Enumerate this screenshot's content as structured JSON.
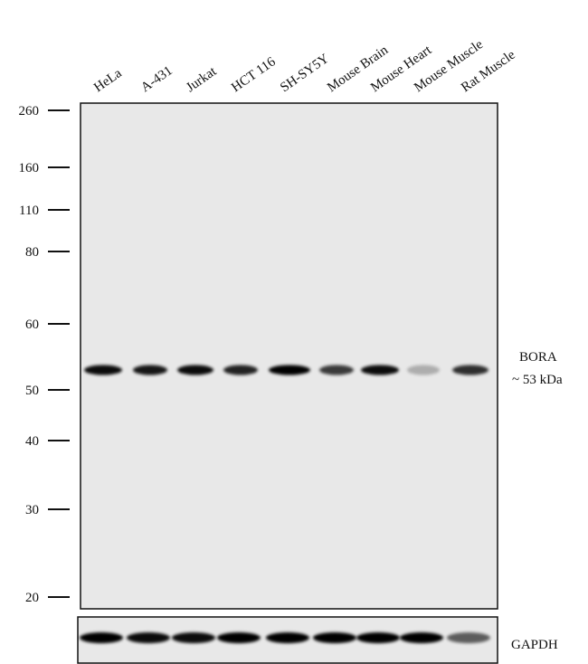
{
  "lanes": [
    "HeLa",
    "A-431",
    "Jurkat",
    "HCT 116",
    "SH-SY5Y",
    "Mouse Brain",
    "Mouse Heart",
    "Mouse Muscle",
    "Rat Muscle"
  ],
  "markers": [
    "260",
    "160",
    "110",
    "80",
    "60",
    "50",
    "40",
    "30",
    "20"
  ],
  "target": {
    "name": "BORA",
    "size": "~ 53 kDa"
  },
  "loading_control": "GAPDH"
}
